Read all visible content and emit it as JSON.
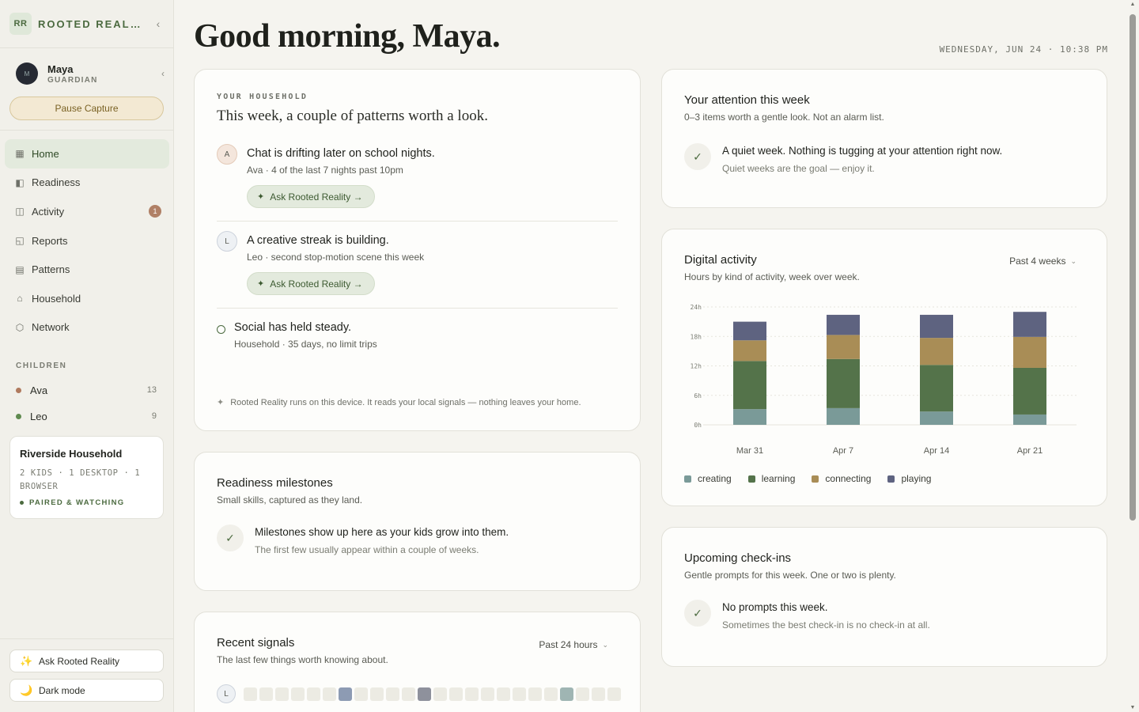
{
  "brand": {
    "logo": "RR",
    "name": "ROOTED REALITY",
    "collapse_icon": "chevron-left-icon"
  },
  "user": {
    "initials": "M",
    "name": "Maya",
    "role": "GUARDIAN"
  },
  "pause_label": "Pause Capture",
  "nav": [
    {
      "label": "Home",
      "icon": "▦",
      "active": true
    },
    {
      "label": "Readiness",
      "icon": "◧"
    },
    {
      "label": "Activity",
      "icon": "◫",
      "badge": "1"
    },
    {
      "label": "Reports",
      "icon": "◱"
    },
    {
      "label": "Patterns",
      "icon": "▤"
    },
    {
      "label": "Household",
      "icon": "⌂"
    },
    {
      "label": "Network",
      "icon": "⬡"
    }
  ],
  "children_label": "CHILDREN",
  "children": [
    {
      "name": "Ava",
      "count": "13",
      "color": "#b07a5e"
    },
    {
      "name": "Leo",
      "count": "9",
      "color": "#5f8a4f"
    }
  ],
  "household_card": {
    "name": "Riverside Household",
    "meta": "2 KIDS · 1 DESKTOP · 1 BROWSER",
    "status": "PAIRED & WATCHING"
  },
  "bottom_buttons": {
    "ask": "Ask Rooted Reality",
    "dark": "Dark mode"
  },
  "greeting": "Good morning, Maya.",
  "date_line": "WEDNESDAY, JUN 24 · 10:38 PM",
  "household_panel": {
    "eyebrow": "YOUR HOUSEHOLD",
    "heading": "This week, a couple of patterns worth a look.",
    "patterns": [
      {
        "initial": "A",
        "title": "Chat is drifting later on school nights.",
        "meta": "Ava · 4 of the last 7 nights past 10pm",
        "ask": "Ask Rooted Reality →"
      },
      {
        "initial": "L",
        "title": "A creative streak is building.",
        "meta": "Leo · second stop-motion scene this week",
        "ask": "Ask Rooted Reality →"
      },
      {
        "title": "Social has held steady.",
        "meta": "Household · 35 days, no limit trips"
      }
    ],
    "footnote": "Rooted Reality runs on this device. It reads your local signals — nothing leaves your home."
  },
  "milestones": {
    "title": "Readiness milestones",
    "sub": "Small skills, captured as they land.",
    "main": "Milestones show up here as your kids grow into them.",
    "detail": "The first few usually appear within a couple of weeks."
  },
  "signals": {
    "title": "Recent signals",
    "sub": "The last few things worth knowing about.",
    "range": "Past 24 hours",
    "row_initial": "L",
    "cells": [
      0,
      0,
      0,
      0,
      0,
      0,
      1,
      0,
      0,
      0,
      0,
      2,
      0,
      0,
      0,
      0,
      0,
      0,
      0,
      0,
      3,
      0,
      0,
      0
    ],
    "cell_colors": [
      "#ecebe3",
      "#8d9bb3",
      "#8e919c",
      "#9fb5b3"
    ]
  },
  "attention": {
    "title": "Your attention this week",
    "sub": "0–3 items worth a gentle look. Not an alarm list.",
    "main": "A quiet week. Nothing is tugging at your attention right now.",
    "detail": "Quiet weeks are the goal — enjoy it."
  },
  "activity": {
    "title": "Digital activity",
    "sub": "Hours by kind of activity, week over week.",
    "range": "Past 4 weeks"
  },
  "chart_data": {
    "type": "bar",
    "stacked": true,
    "categories": [
      "Mar 31",
      "Apr 7",
      "Apr 14",
      "Apr 21"
    ],
    "series": [
      {
        "name": "creating",
        "color": "#7a9a98",
        "values": [
          3.2,
          3.4,
          2.7,
          2.1
        ]
      },
      {
        "name": "learning",
        "color": "#54734a",
        "values": [
          9.8,
          10.0,
          9.5,
          9.5
        ]
      },
      {
        "name": "connecting",
        "color": "#a98d56",
        "values": [
          4.2,
          4.9,
          5.5,
          6.3
        ]
      },
      {
        "name": "playing",
        "color": "#5e6380",
        "values": [
          3.8,
          4.1,
          4.7,
          5.1
        ]
      }
    ],
    "yticks": [
      "0h",
      "6h",
      "12h",
      "18h",
      "24h"
    ],
    "ylim": [
      0,
      24
    ],
    "grid": true,
    "legend": "bottom"
  },
  "checkins": {
    "title": "Upcoming check-ins",
    "sub": "Gentle prompts for this week. One or two is plenty.",
    "main": "No prompts this week.",
    "detail": "Sometimes the best check-in is no check-in at all."
  }
}
